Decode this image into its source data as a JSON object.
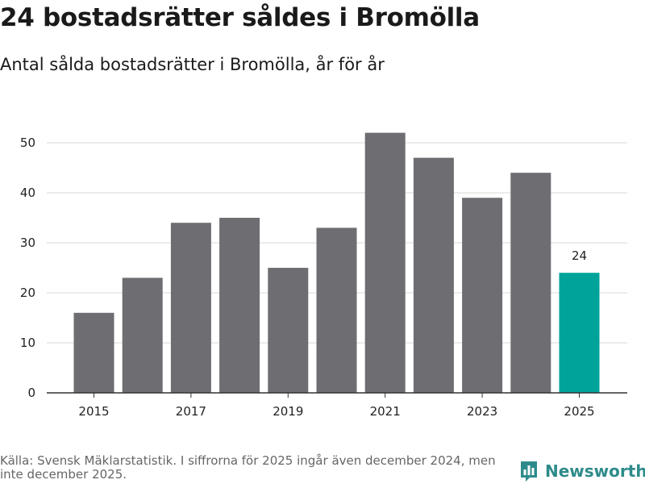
{
  "chart_data": {
    "type": "bar",
    "title": "24 bostadsrätter såldes i Bromölla",
    "subtitle": "Antal sålda bostadsrätter i Bromölla, år för år",
    "categories": [
      "2015",
      "2016",
      "2017",
      "2018",
      "2019",
      "2020",
      "2021",
      "2022",
      "2023",
      "2024",
      "2025"
    ],
    "values": [
      16,
      23,
      34,
      35,
      25,
      33,
      52,
      47,
      39,
      44,
      24
    ],
    "x_tick_labels": [
      "2015",
      "2017",
      "2019",
      "2021",
      "2023",
      "2025"
    ],
    "y_ticks": [
      "0",
      "10",
      "20",
      "30",
      "40",
      "50"
    ],
    "ylim": [
      0,
      56
    ],
    "highlight_index": 10,
    "highlight_label": "24",
    "xlabel": "",
    "ylabel": "",
    "grid": true,
    "colors": {
      "bar": "#6e6d72",
      "highlight": "#00a39a",
      "grid": "#d9d9d9",
      "axis": "#333333"
    }
  },
  "footer": {
    "source": "Källa: Svensk Mäklarstatistik. I siffrorna för 2025 ingår även december 2024, men inte december 2025.",
    "brand": "Newsworthy",
    "brand_icon": "bar-chart-logo-icon"
  }
}
